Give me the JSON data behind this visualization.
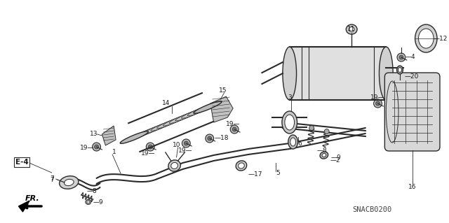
{
  "background_color": "#ffffff",
  "fig_width": 6.4,
  "fig_height": 3.19,
  "dpi": 100,
  "watermark": "SNACB0200",
  "line_color": "#2a2a2a",
  "text_color": "#1a1a1a",
  "font_size_labels": 6.5,
  "font_size_watermark": 7.5
}
